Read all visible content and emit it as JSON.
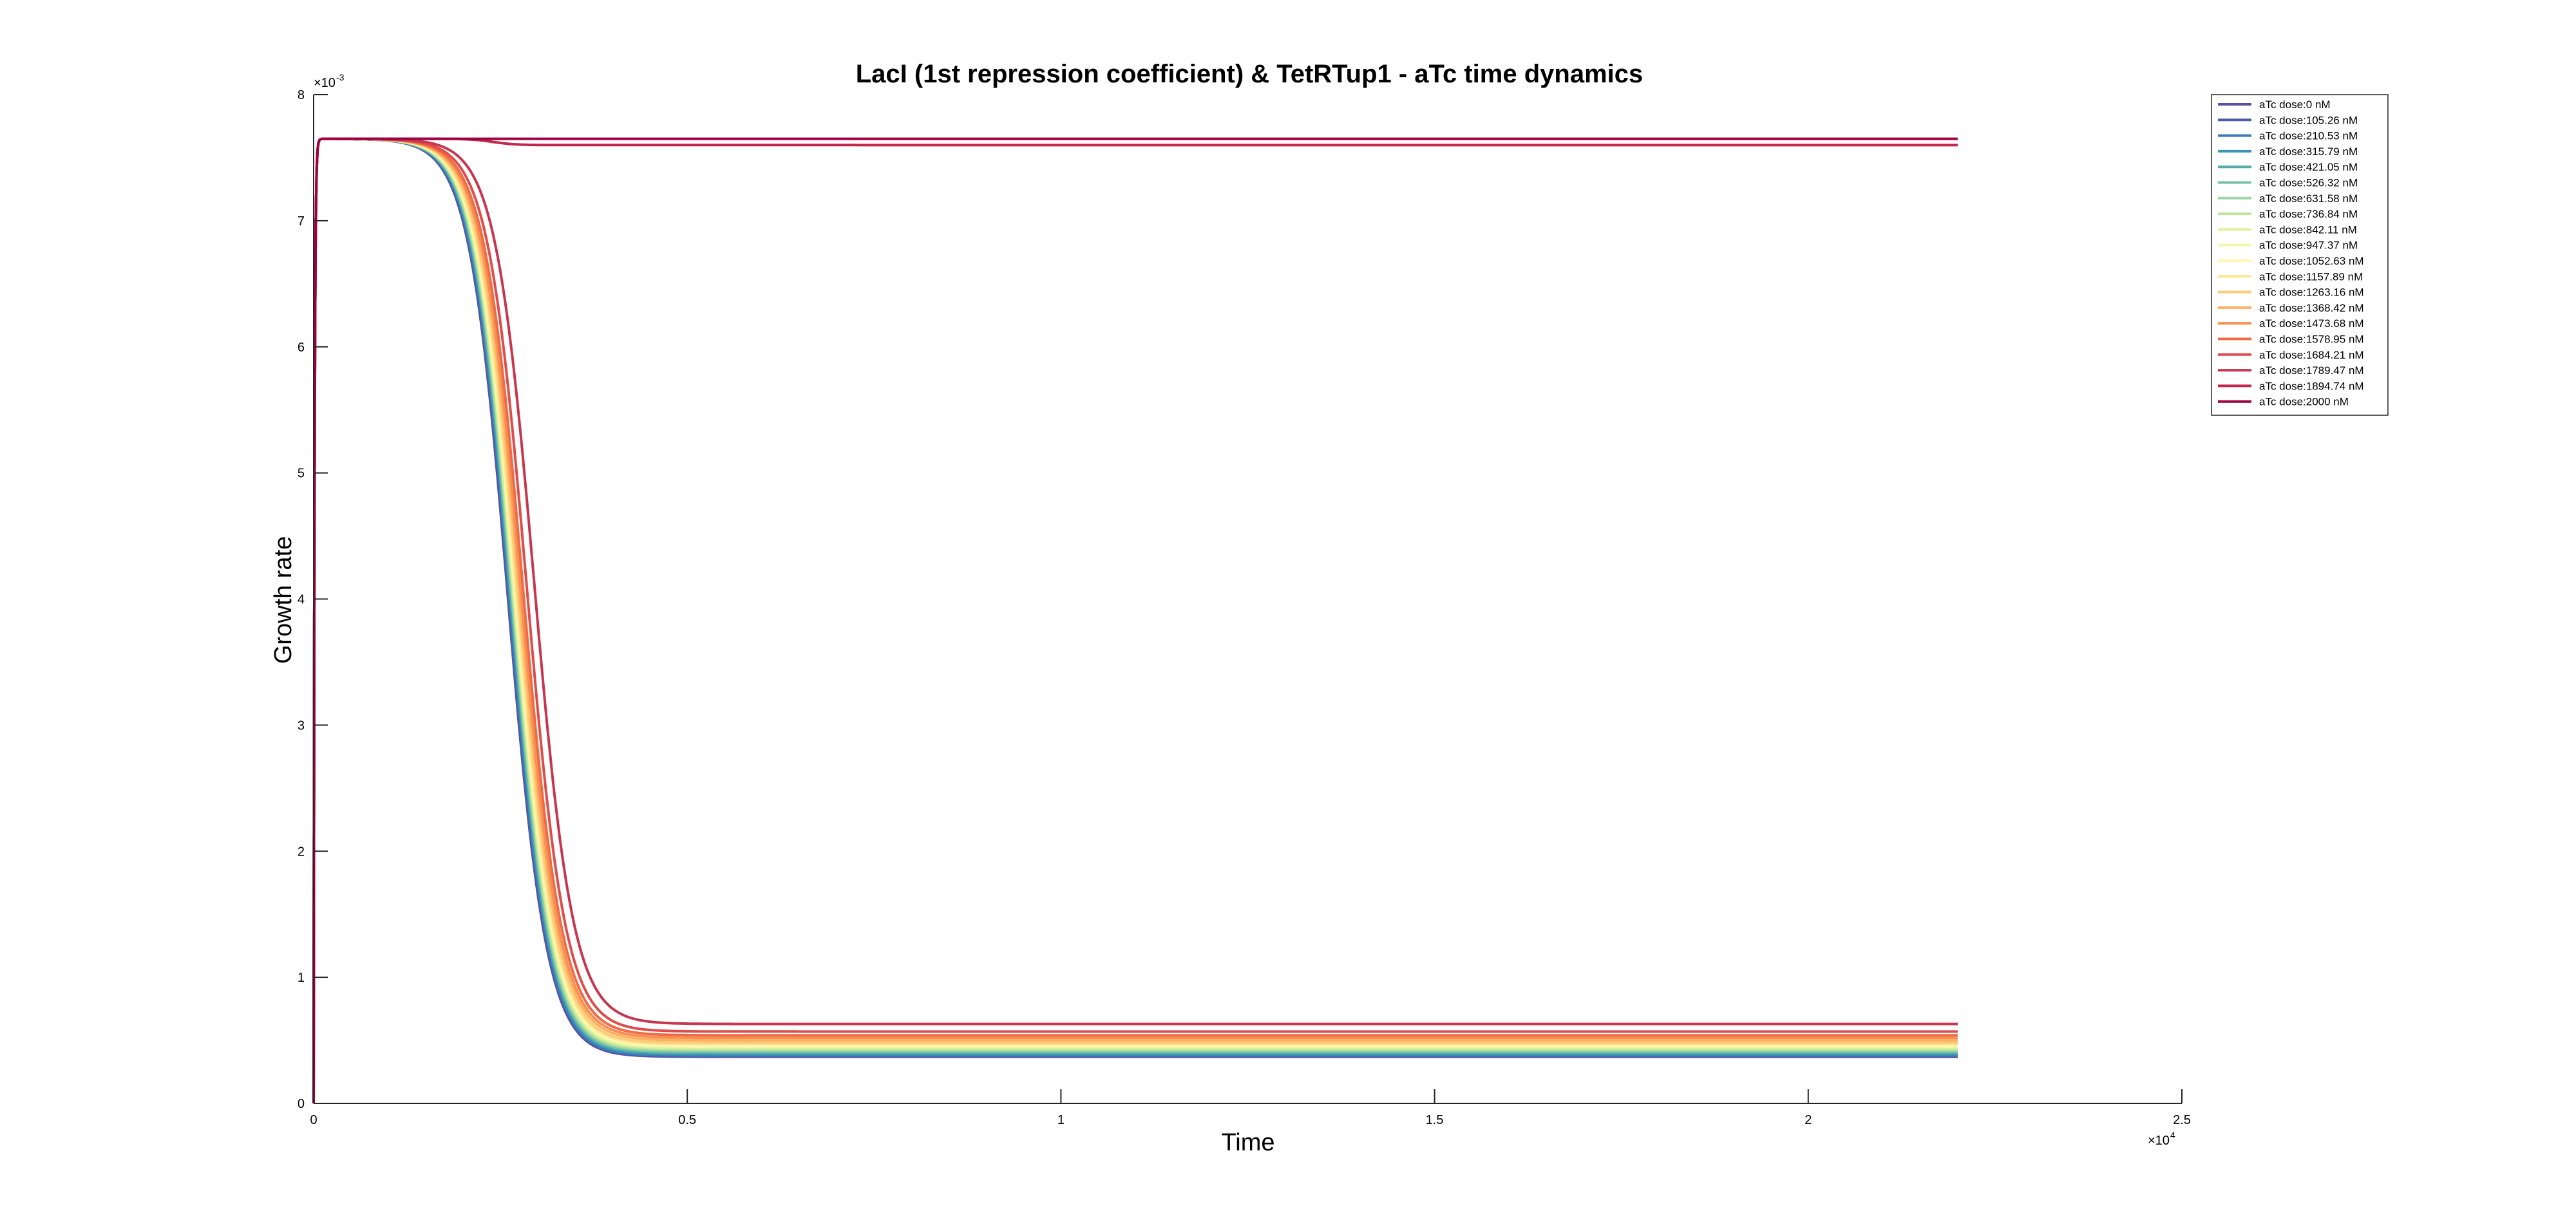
{
  "chart_data": {
    "type": "line",
    "title": "LacI (1st repression coefficient) & TetRTup1 - aTc time dynamics",
    "xlabel": "Time",
    "ylabel": "Growth rate",
    "x_multiplier_base": "×10",
    "x_multiplier_exp": "4",
    "y_multiplier_base": "×10",
    "y_multiplier_exp": "-3",
    "xlim": [
      0,
      25000
    ],
    "ylim": [
      0,
      0.008
    ],
    "x_ticks": [
      0,
      5000,
      10000,
      15000,
      20000,
      25000
    ],
    "x_tick_labels": [
      "0",
      "0.5",
      "1",
      "1.5",
      "2",
      "2.5"
    ],
    "y_ticks": [
      0,
      0.001,
      0.002,
      0.003,
      0.004,
      0.005,
      0.006,
      0.007,
      0.008
    ],
    "y_tick_labels": [
      "0",
      "1",
      "2",
      "3",
      "4",
      "5",
      "6",
      "7",
      "8"
    ],
    "legend_position": "top-right",
    "grid": false,
    "x_end": 22000,
    "series": [
      {
        "name": "aTc dose:0 nM",
        "color": "#5e4fa2",
        "plateau": 0.00765,
        "switch": true,
        "final": 0.00037,
        "midpoint": 2600
      },
      {
        "name": "aTc dose:105.26 nM",
        "color": "#4a5da9",
        "plateau": 0.00765,
        "switch": true,
        "final": 0.000375,
        "midpoint": 2610
      },
      {
        "name": "aTc dose:210.53 nM",
        "color": "#3a7ab8",
        "plateau": 0.00765,
        "switch": true,
        "final": 0.00038,
        "midpoint": 2620
      },
      {
        "name": "aTc dose:315.79 nM",
        "color": "#3c92b8",
        "plateau": 0.00765,
        "switch": true,
        "final": 0.00039,
        "midpoint": 2630
      },
      {
        "name": "aTc dose:421.05 nM",
        "color": "#55aca8",
        "plateau": 0.00765,
        "switch": true,
        "final": 0.0004,
        "midpoint": 2640
      },
      {
        "name": "aTc dose:526.32 nM",
        "color": "#75c4a5",
        "plateau": 0.00765,
        "switch": true,
        "final": 0.00041,
        "midpoint": 2650
      },
      {
        "name": "aTc dose:631.58 nM",
        "color": "#9cd6a4",
        "plateau": 0.00765,
        "switch": true,
        "final": 0.00042,
        "midpoint": 2660
      },
      {
        "name": "aTc dose:736.84 nM",
        "color": "#bfe5a0",
        "plateau": 0.00765,
        "switch": true,
        "final": 0.00043,
        "midpoint": 2670
      },
      {
        "name": "aTc dose:842.11 nM",
        "color": "#dcf19a",
        "plateau": 0.00765,
        "switch": true,
        "final": 0.00044,
        "midpoint": 2680
      },
      {
        "name": "aTc dose:947.37 nM",
        "color": "#f1f9a9",
        "plateau": 0.00765,
        "switch": true,
        "final": 0.00045,
        "midpoint": 2690
      },
      {
        "name": "aTc dose:1052.63 nM",
        "color": "#fef7b2",
        "plateau": 0.00765,
        "switch": true,
        "final": 0.00046,
        "midpoint": 2700
      },
      {
        "name": "aTc dose:1157.89 nM",
        "color": "#fee593",
        "plateau": 0.00765,
        "switch": true,
        "final": 0.00047,
        "midpoint": 2710
      },
      {
        "name": "aTc dose:1263.16 nM",
        "color": "#fdcc7a",
        "plateau": 0.00765,
        "switch": true,
        "final": 0.00048,
        "midpoint": 2730
      },
      {
        "name": "aTc dose:1368.42 nM",
        "color": "#fdb063",
        "plateau": 0.00765,
        "switch": true,
        "final": 0.0005,
        "midpoint": 2750
      },
      {
        "name": "aTc dose:1473.68 nM",
        "color": "#f88f52",
        "plateau": 0.00765,
        "switch": true,
        "final": 0.00052,
        "midpoint": 2770
      },
      {
        "name": "aTc dose:1578.95 nM",
        "color": "#ef6b45",
        "plateau": 0.00765,
        "switch": true,
        "final": 0.00054,
        "midpoint": 2800
      },
      {
        "name": "aTc dose:1684.21 nM",
        "color": "#de4d4b",
        "plateau": 0.00765,
        "switch": true,
        "final": 0.00057,
        "midpoint": 2850
      },
      {
        "name": "aTc dose:1789.47 nM",
        "color": "#c6374f",
        "plateau": 0.00765,
        "switch": true,
        "final": 0.00063,
        "midpoint": 2950
      },
      {
        "name": "aTc dose:1894.74 nM",
        "color": "#c0274b",
        "plateau": 0.00765,
        "switch": false,
        "final": 0.0076,
        "midpoint": 2400
      },
      {
        "name": "aTc dose:2000 nM",
        "color": "#9e0142",
        "plateau": 0.00765,
        "switch": false,
        "final": 0.00765,
        "midpoint": 2400
      }
    ]
  }
}
